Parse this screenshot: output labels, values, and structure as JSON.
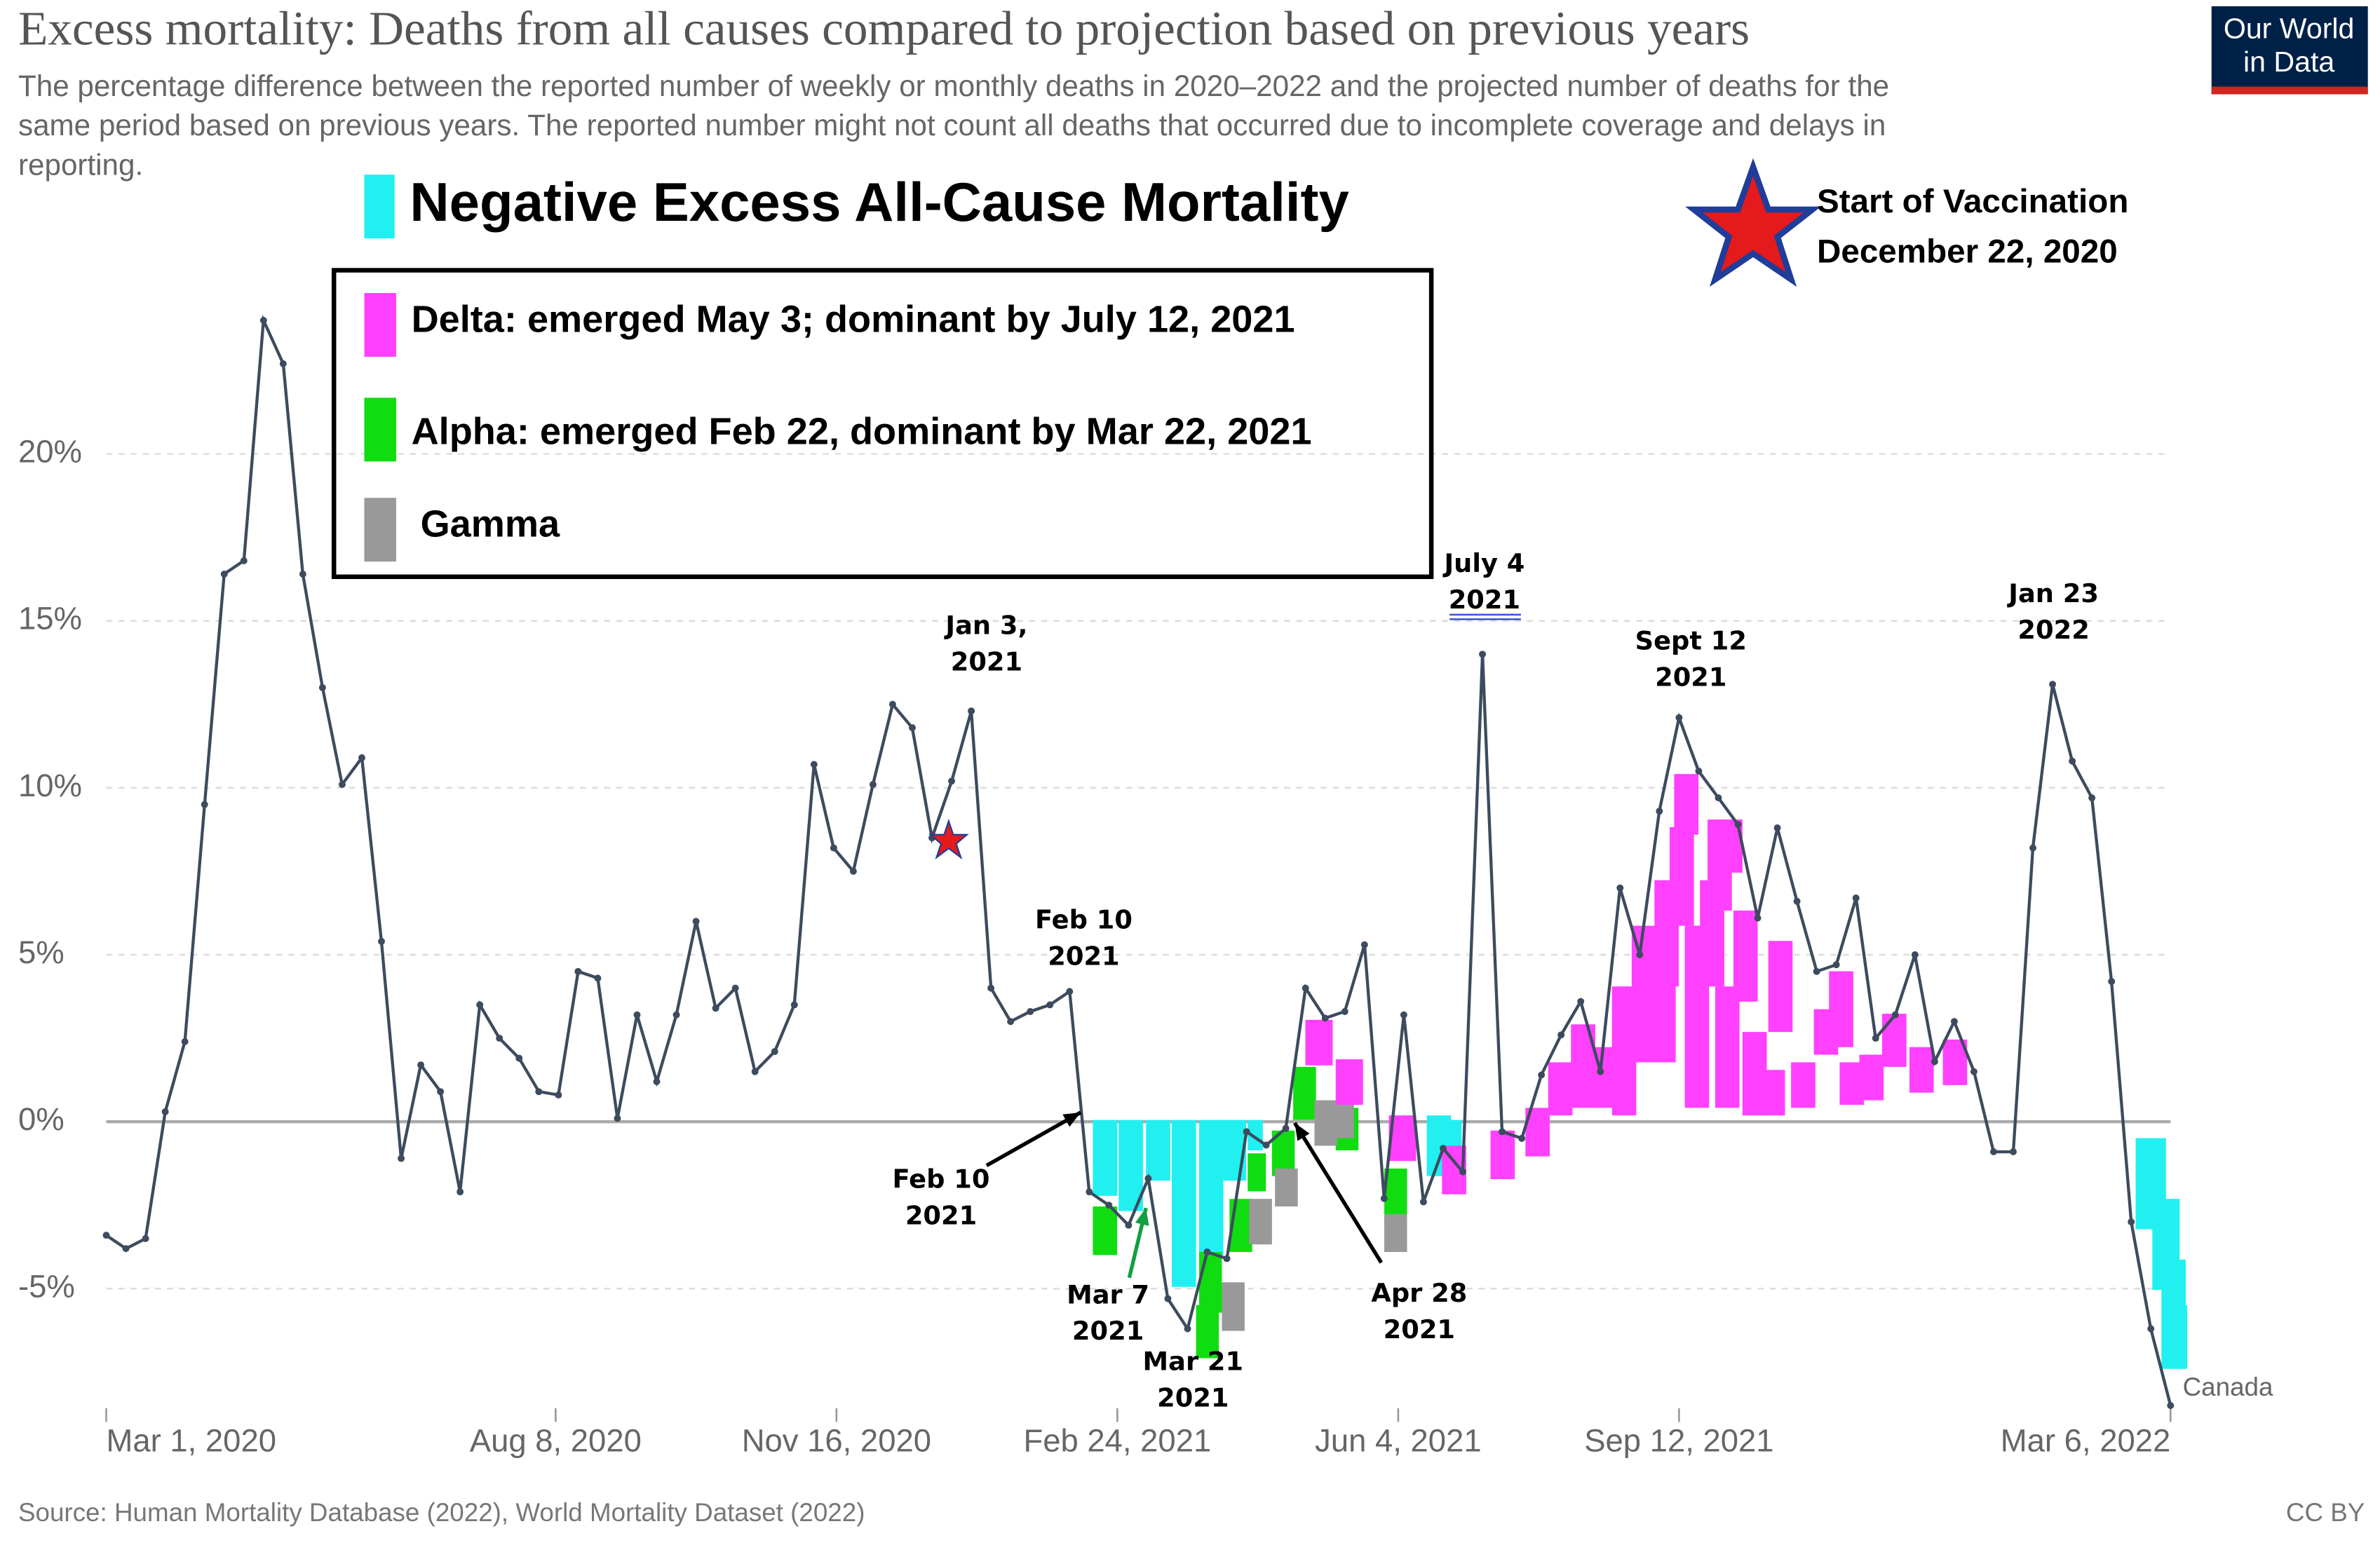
{
  "chart_data": {
    "type": "line",
    "title": "Excess mortality: Deaths from all causes compared to projection based on previous years",
    "subtitle": [
      "The percentage difference between the reported number of weekly or monthly deaths in 2020–2022 and the projected number of deaths for the",
      "same period based on previous years. The reported number might not count all deaths that occurred due to incomplete coverage and delays in",
      "reporting."
    ],
    "source": "Source: Human Mortality Database (2022), World Mortality Dataset (2022)",
    "license": "CC BY",
    "logo": [
      "Our World",
      "in Data"
    ],
    "overlay_title": {
      "label": "Negative Excess All-Cause Mortality",
      "color": "#22f0f0"
    },
    "vaccination": [
      "Start of Vaccination",
      "December 22, 2020"
    ],
    "overlay_legend": [
      {
        "label": "Delta: emerged May 3; dominant by July 12, 2021",
        "color": "#ff40ff"
      },
      {
        "label": "Alpha: emerged Feb 22, dominant by Mar 22, 2021",
        "color": "#10dd10"
      },
      {
        "label": "Gamma",
        "color": "#999999"
      }
    ],
    "annotations": [
      [
        "Jan 3,",
        "2021"
      ],
      [
        "Feb 10",
        "2021"
      ],
      [
        "July 4",
        "2021"
      ],
      [
        "Sept 12",
        "2021"
      ],
      [
        "Jan 23",
        "2022"
      ],
      [
        "Feb 10",
        "2021"
      ],
      [
        "Mar 7",
        "2021"
      ],
      [
        "Mar 21",
        "2021"
      ],
      [
        "Apr 28",
        "2021"
      ]
    ],
    "x": [
      "2020-03-01",
      "2020-03-08",
      "2020-03-15",
      "2020-03-22",
      "2020-03-29",
      "2020-04-05",
      "2020-04-12",
      "2020-04-19",
      "2020-04-26",
      "2020-05-03",
      "2020-05-10",
      "2020-05-17",
      "2020-05-24",
      "2020-05-31",
      "2020-06-07",
      "2020-06-14",
      "2020-06-21",
      "2020-06-28",
      "2020-07-05",
      "2020-07-12",
      "2020-07-19",
      "2020-07-26",
      "2020-08-02",
      "2020-08-09",
      "2020-08-16",
      "2020-08-23",
      "2020-08-30",
      "2020-09-06",
      "2020-09-13",
      "2020-09-20",
      "2020-09-27",
      "2020-10-04",
      "2020-10-11",
      "2020-10-18",
      "2020-10-25",
      "2020-11-01",
      "2020-11-08",
      "2020-11-15",
      "2020-11-22",
      "2020-11-29",
      "2020-12-06",
      "2020-12-13",
      "2020-12-20",
      "2020-12-27",
      "2021-01-03",
      "2021-01-10",
      "2021-01-17",
      "2021-01-24",
      "2021-01-31",
      "2021-02-07",
      "2021-02-14",
      "2021-02-21",
      "2021-02-28",
      "2021-03-07",
      "2021-03-14",
      "2021-03-21",
      "2021-03-28",
      "2021-04-04",
      "2021-04-11",
      "2021-04-18",
      "2021-04-25",
      "2021-05-02",
      "2021-05-09",
      "2021-05-16",
      "2021-05-23",
      "2021-05-30",
      "2021-06-06",
      "2021-06-13",
      "2021-06-20",
      "2021-06-27",
      "2021-07-04",
      "2021-07-11",
      "2021-07-18",
      "2021-07-25",
      "2021-08-01",
      "2021-08-08",
      "2021-08-15",
      "2021-08-22",
      "2021-08-29",
      "2021-09-05",
      "2021-09-12",
      "2021-09-19",
      "2021-09-26",
      "2021-10-03",
      "2021-10-10",
      "2021-10-17",
      "2021-10-24",
      "2021-10-31",
      "2021-11-07",
      "2021-11-14",
      "2021-11-21",
      "2021-11-28",
      "2021-12-05",
      "2021-12-12",
      "2021-12-19",
      "2021-12-26",
      "2022-01-02",
      "2022-01-09",
      "2022-01-16",
      "2022-01-23",
      "2022-01-30",
      "2022-02-06",
      "2022-02-13",
      "2022-02-20",
      "2022-02-27",
      "2022-03-06"
    ],
    "series": [
      {
        "name": "Canada",
        "color": "#3d4b5e",
        "values": [
          -3.4,
          -3.8,
          -3.5,
          0.3,
          2.4,
          9.5,
          16.4,
          16.8,
          24.0,
          22.7,
          16.4,
          13.0,
          10.1,
          10.9,
          5.4,
          -1.1,
          1.7,
          0.9,
          -2.1,
          3.5,
          2.5,
          1.9,
          0.9,
          0.8,
          4.5,
          4.3,
          0.1,
          3.2,
          1.2,
          3.2,
          6.0,
          3.4,
          4.0,
          1.5,
          2.1,
          3.5,
          10.7,
          8.2,
          7.5,
          10.1,
          12.5,
          11.8,
          8.5,
          10.2,
          12.3,
          4.0,
          3.0,
          3.3,
          3.5,
          3.9,
          -2.1,
          -2.5,
          -3.1,
          -1.7,
          -5.3,
          -6.2,
          -3.9,
          -4.1,
          -0.3,
          -0.7,
          -0.2,
          4.0,
          3.1,
          3.3,
          5.3,
          -2.3,
          3.2,
          -2.4,
          -0.8,
          -1.5,
          14.0,
          -0.3,
          -0.5,
          1.4,
          2.6,
          3.6,
          1.5,
          7.0,
          5.0,
          9.3,
          12.1,
          10.5,
          9.7,
          8.9,
          6.1,
          8.8,
          6.6,
          4.5,
          4.7,
          6.7,
          2.5,
          3.2,
          5.0,
          1.8,
          3.0,
          1.5,
          -0.9,
          -0.9,
          8.2,
          13.1,
          10.8,
          9.7,
          4.2,
          -3.0,
          -6.2,
          -8.5
        ]
      }
    ],
    "xlim": [
      "2020-03-01",
      "2022-03-06"
    ],
    "xticks": [
      {
        "value": "2020-03-01",
        "label": "Mar 1, 2020"
      },
      {
        "value": "2020-08-08",
        "label": "Aug 8, 2020"
      },
      {
        "value": "2020-11-16",
        "label": "Nov 16, 2020"
      },
      {
        "value": "2021-02-24",
        "label": "Feb 24, 2021"
      },
      {
        "value": "2021-06-04",
        "label": "Jun 4, 2021"
      },
      {
        "value": "2021-09-12",
        "label": "Sep 12, 2021"
      },
      {
        "value": "2022-03-06",
        "label": "Mar 6, 2022"
      }
    ],
    "ylim": [
      -8.9,
      24.5
    ],
    "yticks": [
      {
        "value": -5,
        "label": "-5%"
      },
      {
        "value": 0,
        "label": "0%"
      },
      {
        "value": 5,
        "label": "5%"
      },
      {
        "value": 10,
        "label": "10%"
      },
      {
        "value": 15,
        "label": "15%"
      },
      {
        "value": 20,
        "label": "20%"
      }
    ],
    "grid": true
  }
}
